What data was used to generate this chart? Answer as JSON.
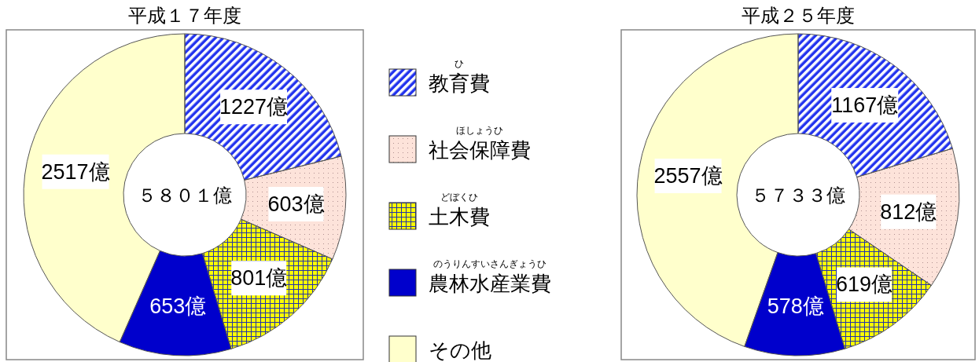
{
  "chart_data": [
    {
      "type": "donut",
      "title": "平成１７年度",
      "subtitle": "５８０１億",
      "categories": [
        "教育費",
        "社会保障費",
        "土木費",
        "農林水産業費",
        "その他"
      ],
      "values": [
        1227,
        603,
        801,
        653,
        2517
      ],
      "colors": [
        "#2233ee",
        "#fde3da",
        "#ffff00",
        "#0000cc",
        "#ffffcc"
      ],
      "value_labels": [
        "1227億",
        "603億",
        "801億",
        "653億",
        "2517億"
      ],
      "legend": "right",
      "annotations": [
        "ひ",
        "ほしょうひ",
        "どぼくひ",
        "のうりんすいさんぎょうひ"
      ]
    },
    {
      "type": "donut",
      "title": "平成２５年度",
      "subtitle": "５７３３億",
      "categories": [
        null,
        null,
        null,
        null,
        null
      ],
      "values": [
        1167,
        812,
        619,
        578,
        2557
      ],
      "colors": [
        "#2233ee",
        "#fde3da",
        "#ffff00",
        "#0000cc",
        "#ffffcc"
      ],
      "value_labels": [
        "1167億",
        "812億",
        "619億",
        "578億",
        "2557億"
      ]
    }
  ]
}
